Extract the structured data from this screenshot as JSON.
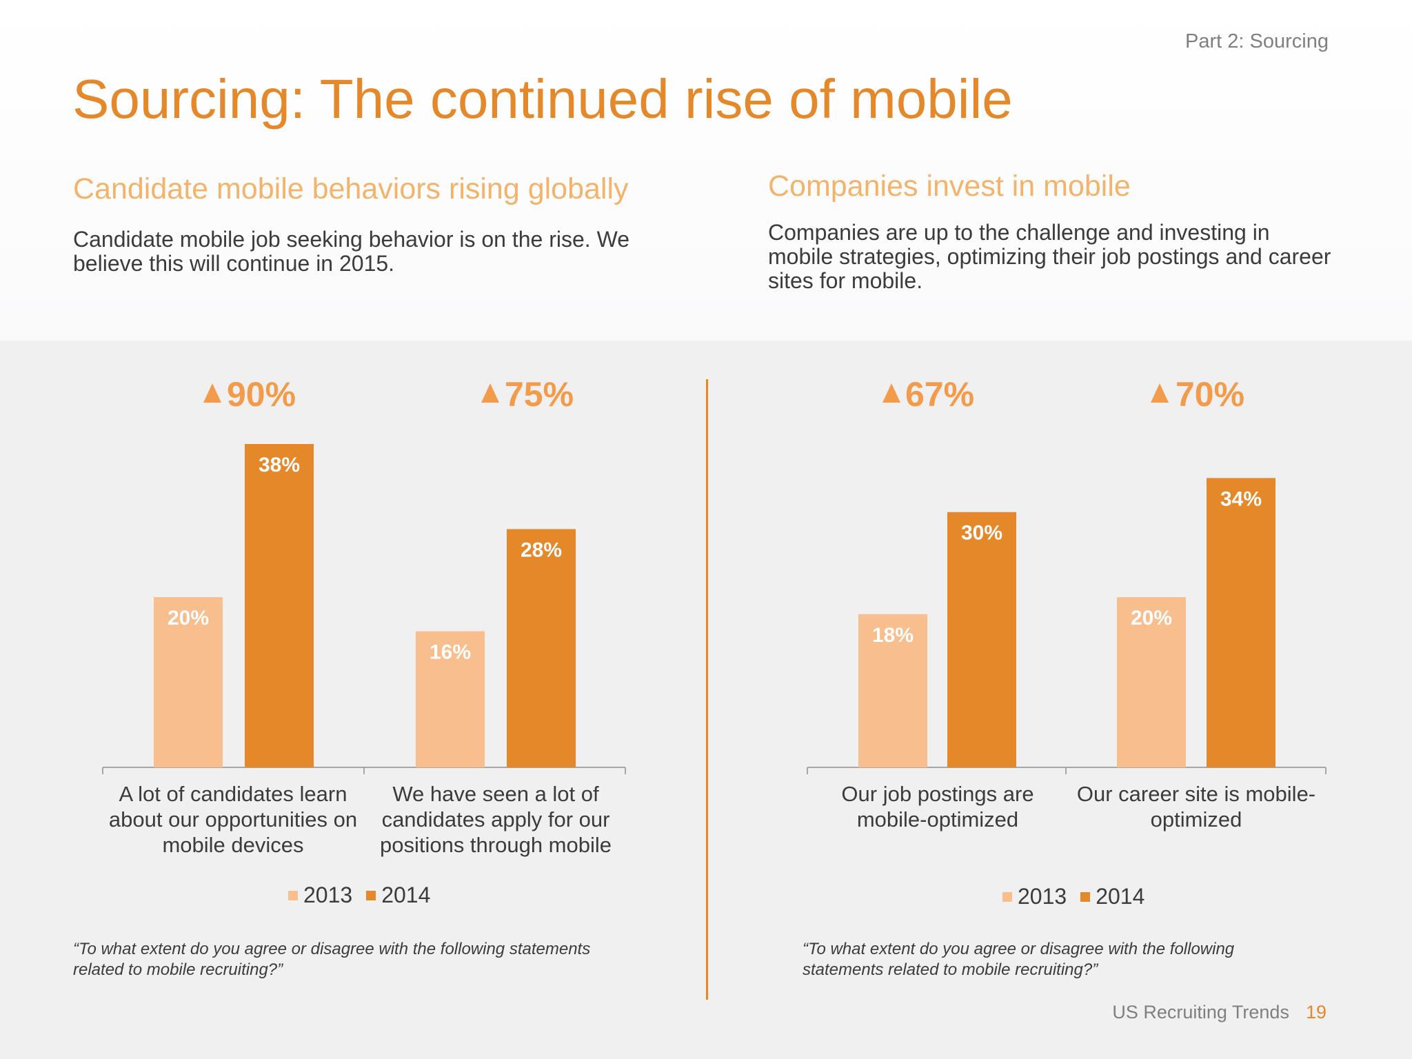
{
  "header": {
    "section": "Part 2: Sourcing",
    "title": "Sourcing: The continued rise of mobile"
  },
  "left": {
    "subhead": "Candidate mobile behaviors rising globally",
    "intro": "Candidate mobile job seeking behavior is on the rise. We believe this will continue in 2015.",
    "question": "“To what extent do you agree or disagree with the following statements related to mobile recruiting?”"
  },
  "right": {
    "subhead": "Companies invest in mobile",
    "intro": "Companies are up to the challenge and investing in mobile strategies, optimizing their job postings and career sites for mobile.",
    "question": "“To what extent do you agree or disagree with the following statements related to mobile recruiting?”"
  },
  "footer": {
    "report": "US Recruiting Trends",
    "page": "19"
  },
  "colors": {
    "accent": "#e4882a",
    "series_2013": "#f8be8e",
    "series_2014": "#e4882a",
    "increase_arrow": "#f29b4b"
  },
  "chart_data": [
    {
      "type": "bar",
      "categories": [
        "A lot of candidates learn about our opportunities on mobile devices",
        "We have seen a lot of candidates apply for our positions through mobile"
      ],
      "series": [
        {
          "name": "2013",
          "values": [
            20,
            16
          ],
          "labels": [
            "20%",
            "16%"
          ]
        },
        {
          "name": "2014",
          "values": [
            38,
            28
          ],
          "labels": [
            "38%",
            "28%"
          ]
        }
      ],
      "increase": [
        "90%",
        "75%"
      ],
      "ylim": [
        0,
        38
      ],
      "legend": "bottom",
      "grid": false
    },
    {
      "type": "bar",
      "categories": [
        "Our job postings are mobile-optimized",
        "Our career site is mobile-optimized"
      ],
      "series": [
        {
          "name": "2013",
          "values": [
            18,
            20
          ],
          "labels": [
            "18%",
            "20%"
          ]
        },
        {
          "name": "2014",
          "values": [
            30,
            34
          ],
          "labels": [
            "30%",
            "34%"
          ]
        }
      ],
      "increase": [
        "67%",
        "70%"
      ],
      "ylim": [
        0,
        38
      ],
      "legend": "bottom",
      "grid": false
    }
  ]
}
